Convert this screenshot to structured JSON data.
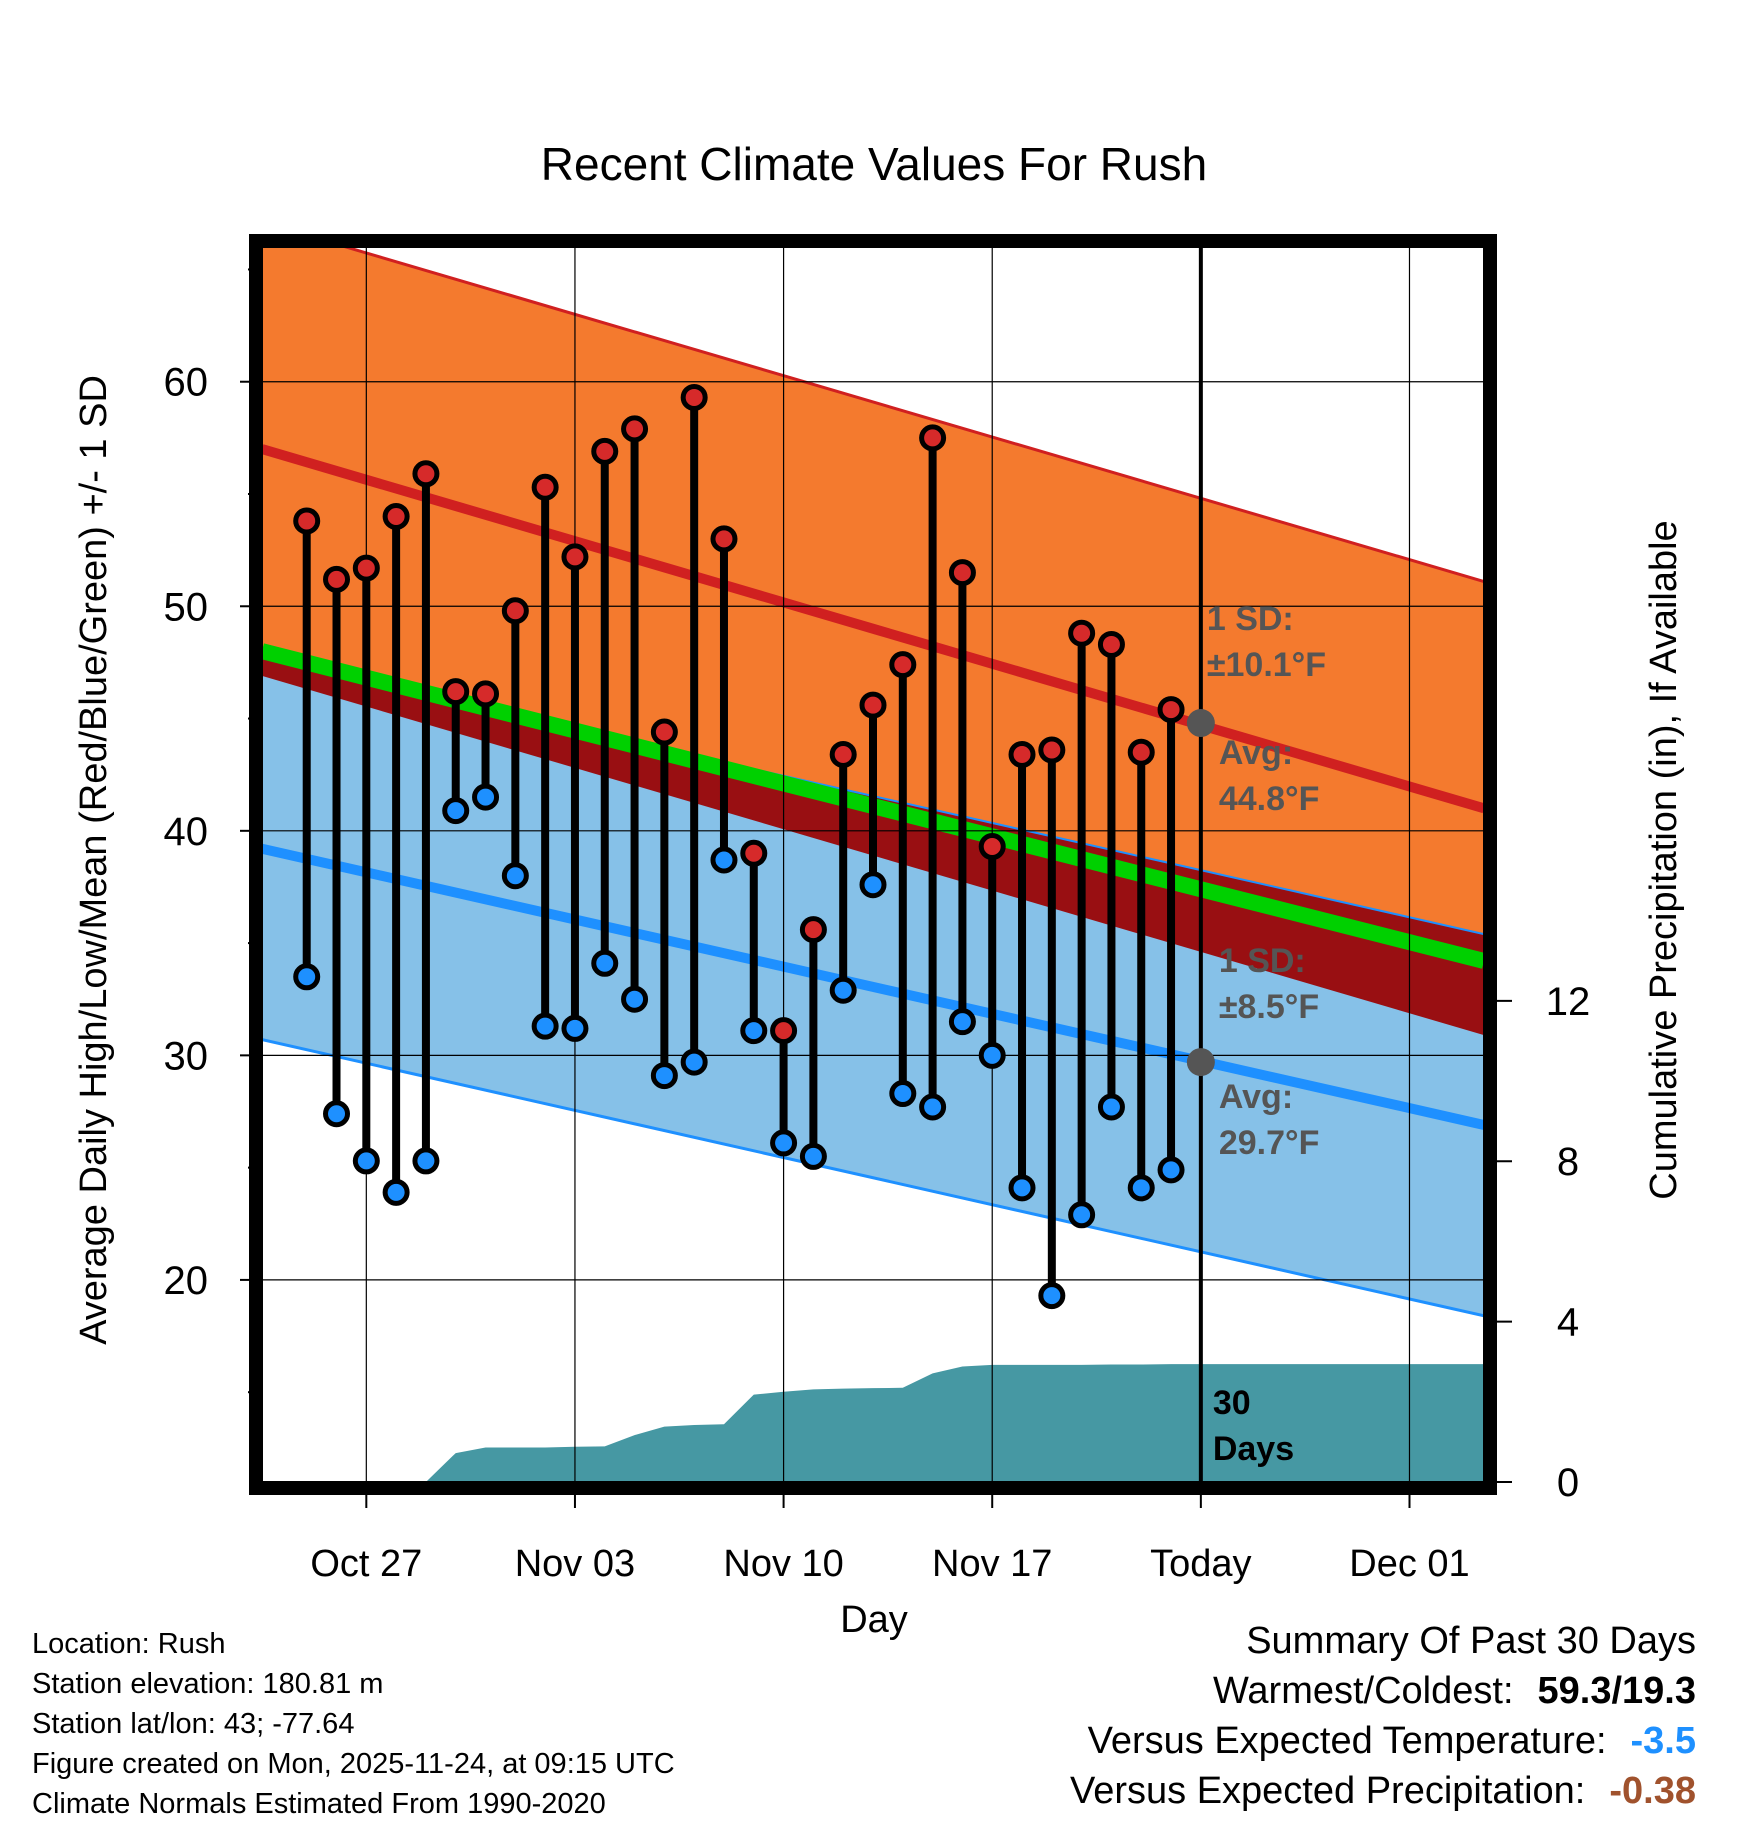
{
  "chart_data": {
    "type": "line",
    "title": "Recent Climate Values For Rush",
    "xlabel": "Day",
    "ylabel_left": "Average Daily High/Low/Mean (Red/Blue/Green) +/- 1 SD",
    "ylabel_right": "Cumulative Precipitation (in), If Available",
    "xlim_days": [
      -0.5,
      40.5
    ],
    "ylim_left": [
      11,
      66
    ],
    "ylim_right": [
      0,
      30.8
    ],
    "x_ticks": [
      {
        "day": 3,
        "label": "Oct 27"
      },
      {
        "day": 10,
        "label": "Nov 03"
      },
      {
        "day": 17,
        "label": "Nov 10"
      },
      {
        "day": 24,
        "label": "Nov 17"
      },
      {
        "day": 31,
        "label": "Today"
      },
      {
        "day": 38,
        "label": "Dec 01"
      }
    ],
    "y_ticks_left": [
      20,
      30,
      40,
      50,
      60
    ],
    "y_ticks_right": [
      0,
      4,
      8,
      12
    ],
    "normals": {
      "high_mean": [
        57.0,
        41.0
      ],
      "high_sd": 10.1,
      "low_mean": [
        39.2,
        26.9
      ],
      "low_sd": 8.5,
      "mean_avg": [
        48.0,
        34.2
      ]
    },
    "observed": {
      "days": [
        1,
        2,
        3,
        4,
        5,
        6,
        7,
        8,
        9,
        10,
        11,
        12,
        13,
        14,
        15,
        16,
        17,
        18,
        19,
        20,
        21,
        22,
        23,
        24,
        25,
        26,
        27,
        28,
        29,
        30
      ],
      "highs": [
        53.8,
        51.2,
        51.7,
        54.0,
        55.9,
        46.2,
        46.1,
        49.8,
        55.3,
        52.2,
        56.9,
        57.9,
        44.4,
        59.3,
        53.0,
        39.0,
        31.1,
        35.6,
        43.4,
        45.6,
        47.4,
        57.5,
        51.5,
        39.3,
        43.4,
        43.6,
        48.8,
        48.3,
        43.5,
        45.4
      ],
      "lows": [
        33.5,
        27.4,
        25.3,
        23.9,
        25.3,
        40.9,
        41.5,
        38.0,
        31.3,
        31.2,
        34.1,
        32.5,
        29.1,
        29.7,
        38.7,
        31.1,
        26.1,
        25.5,
        32.9,
        37.6,
        28.3,
        27.7,
        31.5,
        30.0,
        24.1,
        19.3,
        22.9,
        27.7,
        24.1,
        24.9
      ]
    },
    "precip_cumulative": {
      "days": [
        4,
        5,
        5.9,
        6,
        7,
        7,
        8,
        9,
        10,
        11,
        12,
        13,
        14,
        15,
        16,
        17,
        18,
        19,
        20,
        21,
        22,
        23,
        24,
        25,
        26,
        27,
        28,
        29,
        30,
        31,
        40.5
      ],
      "values": [
        0,
        0,
        0.65,
        0.72,
        0.86,
        0.86,
        0.86,
        0.86,
        0.88,
        0.89,
        1.17,
        1.38,
        1.42,
        1.44,
        2.18,
        2.25,
        2.31,
        2.33,
        2.34,
        2.35,
        2.71,
        2.88,
        2.92,
        2.92,
        2.92,
        2.92,
        2.93,
        2.93,
        2.94,
        2.94,
        2.94
      ]
    },
    "annotations": {
      "high_sd_text": [
        "1 SD:",
        "±10.1°F"
      ],
      "high_avg_text": [
        "Avg:",
        "44.8°F"
      ],
      "high_avg_value": 44.8,
      "low_sd_text": [
        "1 SD:",
        "±8.5°F"
      ],
      "low_avg_text": [
        "Avg:",
        "29.7°F"
      ],
      "low_avg_value": 29.7,
      "days_text": [
        "30",
        "Days"
      ],
      "today_day": 31
    },
    "colors": {
      "high_band": "#f47a2e",
      "high_line": "#d02020",
      "low_band": "#86c1e8",
      "low_line": "#1e90ff",
      "mean_line": "#00d000",
      "overlap": "#990f12",
      "precip": "#4698a3",
      "annot": "#555555",
      "high_dot": "#d62a2a",
      "low_dot": "#1e90ff"
    }
  },
  "footer": {
    "location": "Location: Rush",
    "elevation": "Station elevation: 180.81 m",
    "latlon": "Station lat/lon: 43; -77.64",
    "created": "Figure created on Mon, 2025-11-24, at 09:15 UTC",
    "normals": "Climate Normals Estimated From 1990-2020"
  },
  "summary": {
    "heading": "Summary Of Past 30 Days",
    "warm_label": "Warmest/Coldest:",
    "warm_value": "59.3/19.3",
    "temp_label": "Versus Expected Temperature:",
    "temp_value": "-3.5",
    "temp_color": "#1e90ff",
    "precip_label": "Versus Expected Precipitation:",
    "precip_value": "-0.38",
    "precip_color": "#a0522d"
  }
}
